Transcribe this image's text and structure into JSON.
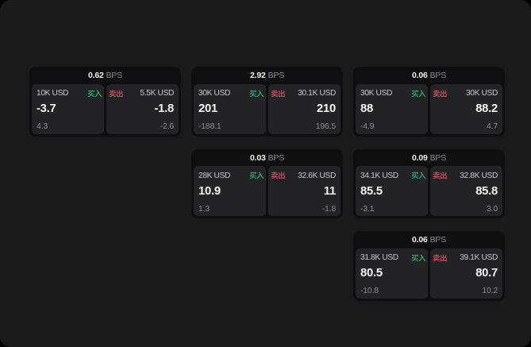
{
  "colors": {
    "page_bg": "#000000",
    "panel_bg": "#1a1a1b",
    "group_bg": "#0f0f10",
    "card_bg": "#232325",
    "buy_green": "#2ebd7b",
    "sell_red": "#dd4f68"
  },
  "labels": {
    "bps_unit": "BPS",
    "buy": "买入",
    "sell": "卖出"
  },
  "groups": [
    {
      "bps": "0.62",
      "buy": {
        "size": "10K USD",
        "value": "-3.7",
        "sub": "4.3"
      },
      "sell": {
        "size": "5.5K USD",
        "value": "-1.8",
        "sub": "-2.6"
      }
    },
    {
      "bps": "2.92",
      "buy": {
        "size": "30K USD",
        "value": "201",
        "sub": "-188.1"
      },
      "sell": {
        "size": "30.1K USD",
        "value": "210",
        "sub": "196.5"
      }
    },
    {
      "bps": "0.03",
      "buy": {
        "size": "28K USD",
        "value": "10.9",
        "sub": "1.3"
      },
      "sell": {
        "size": "32.6K USD",
        "value": "11",
        "sub": "-1.8"
      }
    },
    {
      "bps": "0.06",
      "buy": {
        "size": "30K USD",
        "value": "88",
        "sub": "-4.9"
      },
      "sell": {
        "size": "30K USD",
        "value": "88.2",
        "sub": "4.7"
      }
    },
    {
      "bps": "0.09",
      "buy": {
        "size": "34.1K USD",
        "value": "85.5",
        "sub": "-3.1"
      },
      "sell": {
        "size": "32.8K USD",
        "value": "85.8",
        "sub": "3.0"
      }
    },
    {
      "bps": "0.06",
      "buy": {
        "size": "31.8K USD",
        "value": "80.5",
        "sub": "-10.8"
      },
      "sell": {
        "size": "39.1K USD",
        "value": "80.7",
        "sub": "10.2"
      }
    }
  ]
}
